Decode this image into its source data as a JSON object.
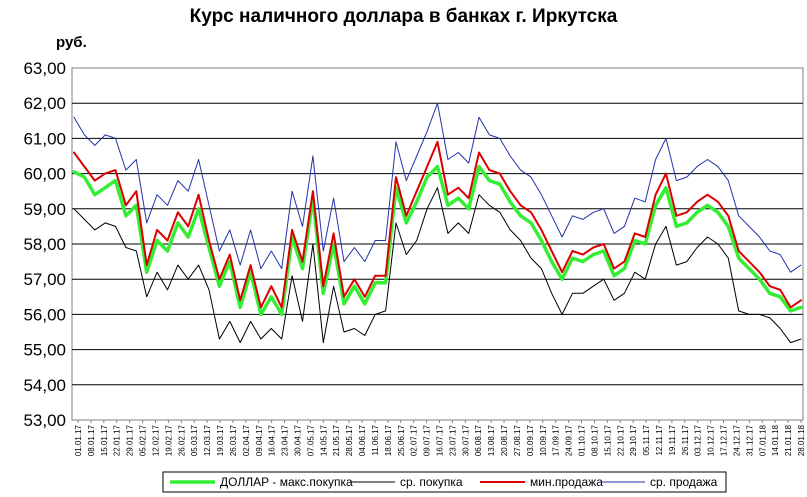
{
  "chart_data": {
    "type": "line",
    "title": "Курс наличного доллара в банках г. Иркутска",
    "unit_label": "руб.",
    "ylim": [
      53,
      63
    ],
    "yticks": [
      "53,00",
      "54,00",
      "55,00",
      "56,00",
      "57,00",
      "58,00",
      "59,00",
      "60,00",
      "61,00",
      "62,00",
      "63,00"
    ],
    "grid": "horizontal",
    "legend_position": "bottom",
    "x_ticks": [
      "01.01.17",
      "08.01.17",
      "15.01.17",
      "22.01.17",
      "29.01.17",
      "05.02.17",
      "12.02.17",
      "19.02.17",
      "26.02.17",
      "05.03.17",
      "12.03.17",
      "19.03.17",
      "26.03.17",
      "02.04.17",
      "09.04.17",
      "16.04.17",
      "23.04.17",
      "30.04.17",
      "07.05.17",
      "14.05.17",
      "21.05.17",
      "28.05.17",
      "04.06.17",
      "11.06.17",
      "18.06.17",
      "25.06.17",
      "02.07.17",
      "09.07.17",
      "16.07.17",
      "23.07.17",
      "30.07.17",
      "06.08.17",
      "13.08.17",
      "20.08.17",
      "27.08.17",
      "03.09.17",
      "10.09.17",
      "17.09.17",
      "24.09.17",
      "01.10.17",
      "08.10.17",
      "15.10.17",
      "22.10.17",
      "29.10.17",
      "05.11.17",
      "12.11.17",
      "19.11.17",
      "26.11.17",
      "03.12.17",
      "10.12.17",
      "17.12.17",
      "24.12.17",
      "31.12.17",
      "07.01.18",
      "14.01.18",
      "21.01.18",
      "28.01.18"
    ],
    "series": [
      {
        "name": "ДОЛЛАР - макс.покупка",
        "color": "#33ee33",
        "width": 3.5,
        "values": [
          60.05,
          59.9,
          59.4,
          59.6,
          59.8,
          58.8,
          59.1,
          57.2,
          58.1,
          57.8,
          58.6,
          58.2,
          59.0,
          57.9,
          56.8,
          57.5,
          56.2,
          57.2,
          56.0,
          56.5,
          56.0,
          58.2,
          57.3,
          59.3,
          56.6,
          58.0,
          56.3,
          56.8,
          56.3,
          56.9,
          56.9,
          59.6,
          58.6,
          59.2,
          59.9,
          60.2,
          59.1,
          59.3,
          59.0,
          60.2,
          59.8,
          59.7,
          59.2,
          58.8,
          58.6,
          58.1,
          57.5,
          57.0,
          57.6,
          57.5,
          57.7,
          57.8,
          57.1,
          57.3,
          58.1,
          58.0,
          59.1,
          59.6,
          58.5,
          58.6,
          58.9,
          59.1,
          58.9,
          58.5,
          57.6,
          57.3,
          57.0,
          56.6,
          56.5,
          56.1,
          56.2
        ]
      },
      {
        "name": "ср. покупка",
        "color": "#000000",
        "width": 1,
        "values": [
          59.0,
          58.7,
          58.4,
          58.6,
          58.5,
          57.9,
          57.8,
          56.5,
          57.2,
          56.7,
          57.4,
          57.0,
          57.4,
          56.7,
          55.3,
          55.8,
          55.2,
          55.8,
          55.3,
          55.6,
          55.3,
          57.1,
          55.8,
          58.0,
          55.2,
          56.8,
          55.5,
          55.6,
          55.4,
          56.0,
          56.1,
          58.6,
          57.7,
          58.1,
          59.0,
          59.6,
          58.3,
          58.6,
          58.3,
          59.4,
          59.1,
          58.9,
          58.4,
          58.1,
          57.6,
          57.3,
          56.6,
          56.0,
          56.6,
          56.6,
          56.8,
          57.0,
          56.4,
          56.6,
          57.2,
          57.0,
          58.0,
          58.5,
          57.4,
          57.5,
          57.9,
          58.2,
          58.0,
          57.6,
          56.1,
          56.0,
          56.0,
          55.9,
          55.6,
          55.2,
          55.3
        ]
      },
      {
        "name": "мин.продажа",
        "color": "#dd0000",
        "width": 2,
        "values": [
          60.6,
          60.2,
          59.8,
          60.0,
          60.1,
          59.1,
          59.5,
          57.4,
          58.4,
          58.1,
          58.9,
          58.5,
          59.4,
          58.1,
          57.0,
          57.7,
          56.4,
          57.4,
          56.2,
          56.8,
          56.2,
          58.4,
          57.5,
          59.5,
          56.8,
          58.3,
          56.5,
          57.0,
          56.5,
          57.1,
          57.1,
          59.9,
          58.8,
          59.5,
          60.2,
          60.9,
          59.4,
          59.6,
          59.3,
          60.6,
          60.1,
          60.0,
          59.5,
          59.1,
          58.9,
          58.4,
          57.8,
          57.2,
          57.8,
          57.7,
          57.9,
          58.0,
          57.3,
          57.5,
          58.3,
          58.2,
          59.4,
          60.0,
          58.8,
          58.9,
          59.2,
          59.4,
          59.2,
          58.8,
          57.8,
          57.5,
          57.2,
          56.8,
          56.7,
          56.2,
          56.4
        ]
      },
      {
        "name": "ср. продажа",
        "color": "#2233aa",
        "width": 1,
        "values": [
          61.6,
          61.1,
          60.8,
          61.1,
          61.0,
          60.1,
          60.4,
          58.6,
          59.4,
          59.1,
          59.8,
          59.5,
          60.4,
          59.1,
          57.8,
          58.4,
          57.4,
          58.4,
          57.3,
          57.8,
          57.3,
          59.5,
          58.5,
          60.5,
          57.8,
          59.3,
          57.5,
          57.9,
          57.5,
          58.1,
          58.1,
          60.9,
          59.8,
          60.5,
          61.2,
          62.0,
          60.4,
          60.6,
          60.3,
          61.6,
          61.1,
          61.0,
          60.5,
          60.1,
          59.9,
          59.4,
          58.8,
          58.2,
          58.8,
          58.7,
          58.9,
          59.0,
          58.3,
          58.5,
          59.3,
          59.2,
          60.4,
          61.0,
          59.8,
          59.9,
          60.2,
          60.4,
          60.2,
          59.8,
          58.8,
          58.5,
          58.2,
          57.8,
          57.7,
          57.2,
          57.4
        ]
      }
    ]
  }
}
